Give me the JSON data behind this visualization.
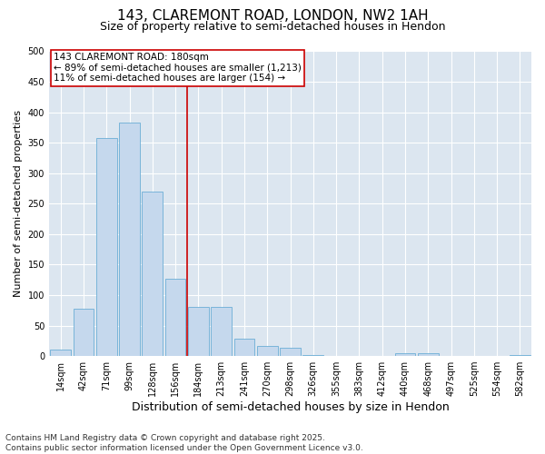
{
  "title1": "143, CLAREMONT ROAD, LONDON, NW2 1AH",
  "title2": "Size of property relative to semi-detached houses in Hendon",
  "xlabel": "Distribution of semi-detached houses by size in Hendon",
  "ylabel": "Number of semi-detached properties",
  "categories": [
    "14sqm",
    "42sqm",
    "71sqm",
    "99sqm",
    "128sqm",
    "156sqm",
    "184sqm",
    "213sqm",
    "241sqm",
    "270sqm",
    "298sqm",
    "326sqm",
    "355sqm",
    "383sqm",
    "412sqm",
    "440sqm",
    "468sqm",
    "497sqm",
    "525sqm",
    "554sqm",
    "582sqm"
  ],
  "values": [
    10,
    78,
    358,
    383,
    270,
    127,
    80,
    80,
    28,
    17,
    13,
    2,
    0,
    0,
    0,
    5,
    5,
    0,
    0,
    0,
    2
  ],
  "bar_color": "#c5d8ed",
  "bar_edge_color": "#6baed6",
  "ref_line_label": "143 CLAREMONT ROAD: 180sqm",
  "annotation_smaller": "← 89% of semi-detached houses are smaller (1,213)",
  "annotation_larger": "11% of semi-detached houses are larger (154) →",
  "ref_line_color": "#cc0000",
  "annotation_box_edge_color": "#cc0000",
  "plot_bg_color": "#dce6f0",
  "fig_bg_color": "#ffffff",
  "grid_color": "#ffffff",
  "ylim": [
    0,
    500
  ],
  "yticks": [
    0,
    50,
    100,
    150,
    200,
    250,
    300,
    350,
    400,
    450,
    500
  ],
  "ref_bar_index": 6,
  "footnote1": "Contains HM Land Registry data © Crown copyright and database right 2025.",
  "footnote2": "Contains public sector information licensed under the Open Government Licence v3.0.",
  "title1_fontsize": 11,
  "title2_fontsize": 9,
  "xlabel_fontsize": 9,
  "ylabel_fontsize": 8,
  "tick_fontsize": 7,
  "annotation_fontsize": 7.5,
  "footnote_fontsize": 6.5
}
